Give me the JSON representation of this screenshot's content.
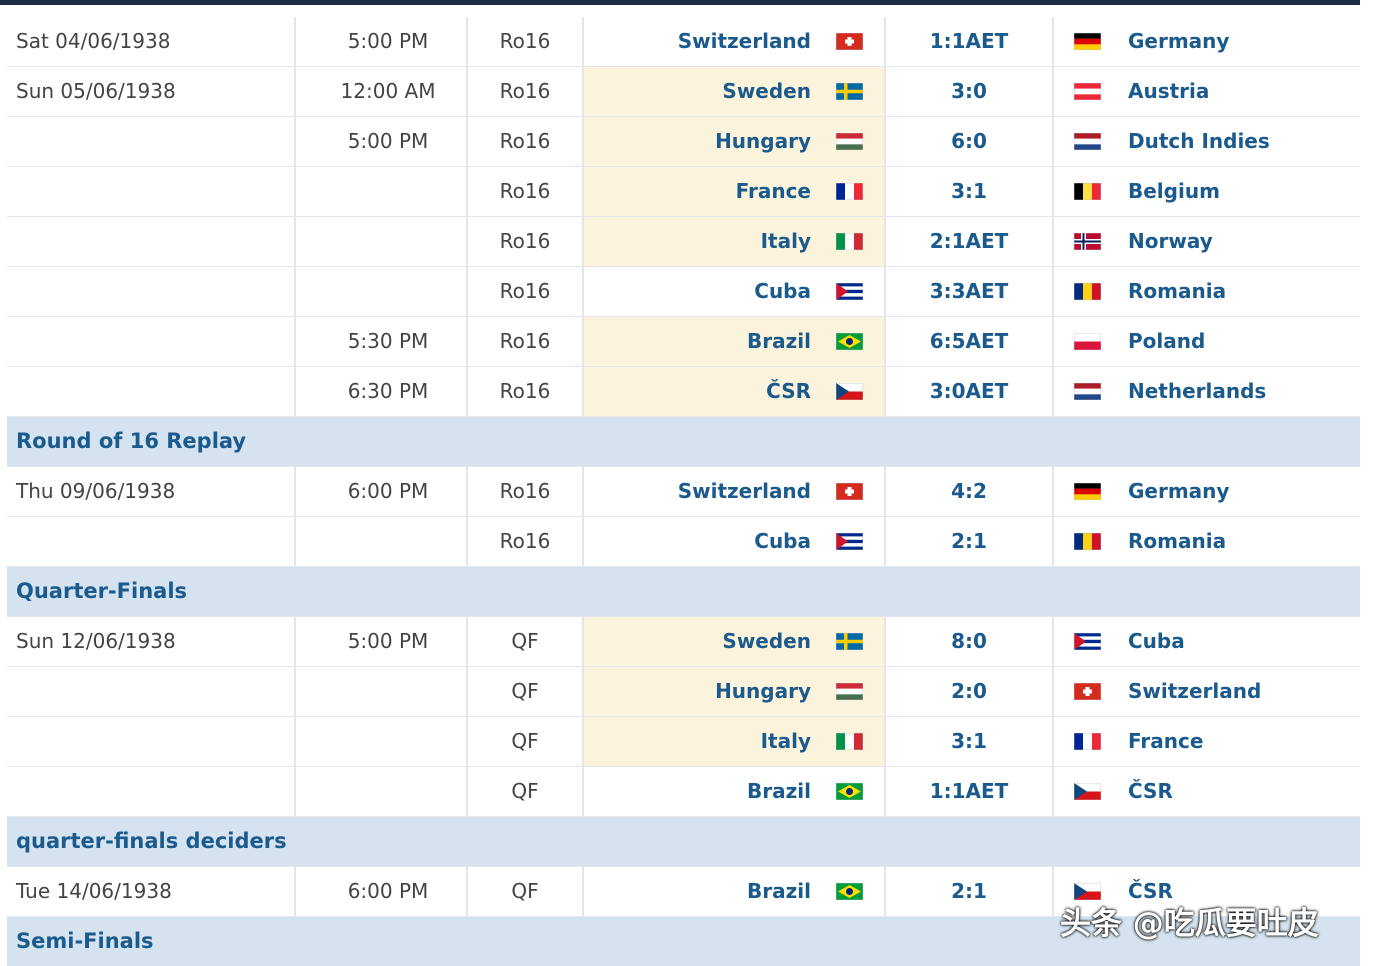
{
  "rows": [
    {
      "date": "Sat 04/06/1938",
      "time": "5:00 PM",
      "round": "Ro16",
      "home": "Switzerland",
      "score": "1:1AET",
      "away": "Germany"
    },
    {
      "date": "Sun 05/06/1938",
      "time": "12:00 AM",
      "round": "Ro16",
      "home": "Sweden",
      "score": "3:0",
      "away": "Austria"
    },
    {
      "time": "5:00 PM",
      "round": "Ro16",
      "home": "Hungary",
      "score": "6:0",
      "away": "Dutch Indies"
    },
    {
      "round": "Ro16",
      "home": "France",
      "score": "3:1",
      "away": "Belgium"
    },
    {
      "round": "Ro16",
      "home": "Italy",
      "score": "2:1AET",
      "away": "Norway"
    },
    {
      "round": "Ro16",
      "home": "Cuba",
      "score": "3:3AET",
      "away": "Romania"
    },
    {
      "time": "5:30 PM",
      "round": "Ro16",
      "home": "Brazil",
      "score": "6:5AET",
      "away": "Poland"
    },
    {
      "time": "6:30 PM",
      "round": "Ro16",
      "home": "ČSR",
      "score": "3:0AET",
      "away": "Netherlands"
    },
    {
      "section": "Round of 16 Replay"
    },
    {
      "date": "Thu 09/06/1938",
      "time": "6:00 PM",
      "round": "Ro16",
      "home": "Switzerland",
      "score": "4:2",
      "away": "Germany"
    },
    {
      "round": "Ro16",
      "home": "Cuba",
      "score": "2:1",
      "away": "Romania"
    },
    {
      "section": "Quarter-Finals"
    },
    {
      "date": "Sun 12/06/1938",
      "time": "5:00 PM",
      "round": "QF",
      "home": "Sweden",
      "score": "8:0",
      "away": "Cuba"
    },
    {
      "round": "QF",
      "home": "Hungary",
      "score": "2:0",
      "away": "Switzerland"
    },
    {
      "round": "QF",
      "home": "Italy",
      "score": "3:1",
      "away": "France"
    },
    {
      "round": "QF",
      "home": "Brazil",
      "score": "1:1AET",
      "away": "ČSR"
    },
    {
      "section": "quarter-finals deciders"
    },
    {
      "date": "Tue 14/06/1938",
      "time": "6:00 PM",
      "round": "QF",
      "home": "Brazil",
      "score": "2:1",
      "away": "ČSR"
    },
    {
      "section": "Semi-Finals"
    }
  ],
  "watermark": "头条 @吃瓜要吐皮"
}
